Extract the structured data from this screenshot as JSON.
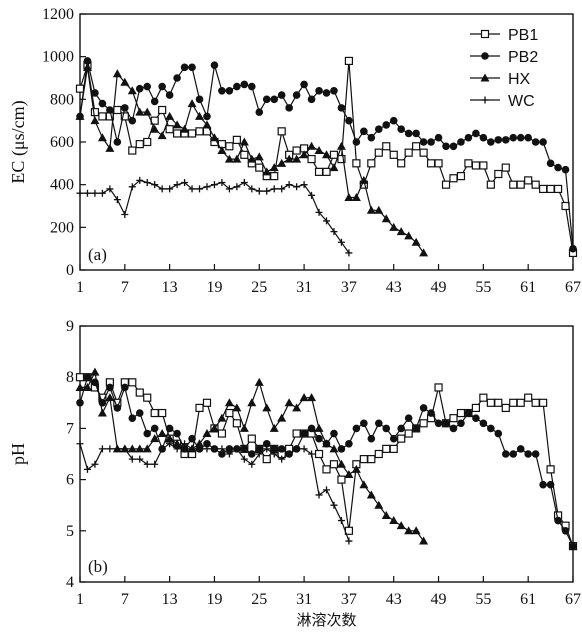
{
  "chart_data": [
    {
      "type": "line",
      "panel_label": "(a)",
      "ylabel": "EC (μs/cm)",
      "xlabel": "",
      "ylim": [
        0,
        1200
      ],
      "yticks": [
        0,
        200,
        400,
        600,
        800,
        1000,
        1200
      ],
      "xlim": [
        1,
        67
      ],
      "xticks": [
        1,
        7,
        13,
        19,
        25,
        31,
        37,
        43,
        49,
        55,
        61,
        67
      ],
      "legend": "top-right",
      "series": [
        {
          "name": "PB1",
          "marker": "square-open",
          "x": [
            1,
            2,
            3,
            4,
            5,
            6,
            7,
            8,
            9,
            10,
            11,
            12,
            13,
            14,
            15,
            16,
            17,
            18,
            19,
            20,
            21,
            22,
            23,
            24,
            25,
            26,
            27,
            28,
            29,
            30,
            31,
            32,
            33,
            34,
            35,
            36,
            37,
            38,
            39,
            40,
            41,
            42,
            43,
            44,
            45,
            46,
            47,
            48,
            49,
            50,
            51,
            52,
            53,
            54,
            55,
            56,
            57,
            58,
            59,
            60,
            61,
            62,
            63,
            64,
            65,
            66,
            67
          ],
          "y": [
            850,
            960,
            740,
            720,
            720,
            750,
            720,
            560,
            590,
            600,
            700,
            750,
            660,
            640,
            640,
            640,
            650,
            650,
            600,
            590,
            580,
            610,
            540,
            500,
            480,
            440,
            440,
            650,
            540,
            560,
            570,
            520,
            460,
            460,
            540,
            520,
            980,
            500,
            400,
            500,
            550,
            580,
            540,
            500,
            550,
            580,
            550,
            500,
            500,
            400,
            430,
            440,
            500,
            490,
            490,
            400,
            450,
            480,
            400,
            400,
            420,
            400,
            380,
            380,
            380,
            300,
            80
          ]
        },
        {
          "name": "PB2",
          "marker": "circle-filled",
          "x": [
            1,
            2,
            3,
            4,
            5,
            6,
            7,
            8,
            9,
            10,
            11,
            12,
            13,
            14,
            15,
            16,
            17,
            18,
            19,
            20,
            21,
            22,
            23,
            24,
            25,
            26,
            27,
            28,
            29,
            30,
            31,
            32,
            33,
            34,
            35,
            36,
            37,
            38,
            39,
            40,
            41,
            42,
            43,
            44,
            45,
            46,
            47,
            48,
            49,
            50,
            51,
            52,
            53,
            54,
            55,
            56,
            57,
            58,
            59,
            60,
            61,
            62,
            63,
            64,
            65,
            66,
            67
          ],
          "y": [
            720,
            980,
            830,
            780,
            750,
            600,
            760,
            700,
            850,
            860,
            790,
            860,
            820,
            900,
            950,
            950,
            800,
            720,
            960,
            840,
            840,
            860,
            870,
            860,
            740,
            800,
            800,
            820,
            760,
            820,
            870,
            800,
            840,
            830,
            840,
            760,
            700,
            600,
            650,
            620,
            660,
            680,
            700,
            660,
            640,
            640,
            600,
            600,
            620,
            580,
            580,
            600,
            620,
            640,
            620,
            600,
            610,
            610,
            620,
            620,
            620,
            600,
            600,
            500,
            480,
            470,
            100
          ]
        },
        {
          "name": "HX",
          "marker": "triangle-filled",
          "x": [
            1,
            2,
            3,
            4,
            5,
            6,
            7,
            8,
            9,
            10,
            11,
            12,
            13,
            14,
            15,
            16,
            17,
            18,
            19,
            20,
            21,
            22,
            23,
            24,
            25,
            26,
            27,
            28,
            29,
            30,
            31,
            32,
            33,
            34,
            35,
            36,
            37,
            38,
            39,
            40,
            41,
            42,
            43,
            44,
            45,
            46,
            47
          ],
          "y": [
            720,
            950,
            700,
            620,
            570,
            920,
            880,
            840,
            740,
            740,
            660,
            630,
            720,
            680,
            660,
            780,
            720,
            680,
            620,
            560,
            520,
            520,
            600,
            520,
            530,
            460,
            480,
            500,
            520,
            520,
            540,
            580,
            560,
            540,
            480,
            580,
            340,
            340,
            420,
            280,
            280,
            240,
            200,
            180,
            160,
            130,
            80
          ]
        },
        {
          "name": "WC",
          "marker": "plus",
          "x": [
            1,
            2,
            3,
            4,
            5,
            6,
            7,
            8,
            9,
            10,
            11,
            12,
            13,
            14,
            15,
            16,
            17,
            18,
            19,
            20,
            21,
            22,
            23,
            24,
            25,
            26,
            27,
            28,
            29,
            30,
            31,
            32,
            33,
            34,
            35,
            36,
            37
          ],
          "y": [
            360,
            360,
            360,
            360,
            380,
            330,
            260,
            390,
            420,
            410,
            400,
            380,
            380,
            400,
            410,
            380,
            380,
            390,
            400,
            410,
            380,
            390,
            410,
            380,
            370,
            370,
            380,
            380,
            400,
            390,
            400,
            350,
            270,
            230,
            180,
            130,
            80
          ]
        }
      ]
    },
    {
      "type": "line",
      "panel_label": "(b)",
      "ylabel": "pH",
      "xlabel": "淋溶次数",
      "ylim": [
        4,
        9
      ],
      "yticks": [
        4,
        5,
        6,
        7,
        8,
        9
      ],
      "xlim": [
        1,
        67
      ],
      "xticks": [
        1,
        7,
        13,
        19,
        25,
        31,
        37,
        43,
        49,
        55,
        61,
        67
      ],
      "series": [
        {
          "name": "PB1",
          "marker": "square-open",
          "x": [
            1,
            2,
            3,
            4,
            5,
            6,
            7,
            8,
            9,
            10,
            11,
            12,
            13,
            14,
            15,
            16,
            17,
            18,
            19,
            20,
            21,
            22,
            23,
            24,
            25,
            26,
            27,
            28,
            29,
            30,
            31,
            32,
            33,
            34,
            35,
            36,
            37,
            38,
            39,
            40,
            41,
            42,
            43,
            44,
            45,
            46,
            47,
            48,
            49,
            50,
            51,
            52,
            53,
            54,
            55,
            56,
            57,
            58,
            59,
            60,
            61,
            62,
            63,
            64,
            65,
            66,
            67
          ],
          "y": [
            8.0,
            8.0,
            7.8,
            7.6,
            7.9,
            7.5,
            7.9,
            7.9,
            7.7,
            7.6,
            7.3,
            7.3,
            6.8,
            6.7,
            6.5,
            6.5,
            7.4,
            7.5,
            7.0,
            6.9,
            7.3,
            7.1,
            6.6,
            6.8,
            6.6,
            6.4,
            6.6,
            6.5,
            6.6,
            6.9,
            6.9,
            6.9,
            6.5,
            6.2,
            6.3,
            6.0,
            5.0,
            6.3,
            6.4,
            6.4,
            6.5,
            6.6,
            6.6,
            6.8,
            6.9,
            7.0,
            7.1,
            7.2,
            7.8,
            7.1,
            7.2,
            7.3,
            7.3,
            7.4,
            7.6,
            7.5,
            7.5,
            7.4,
            7.5,
            7.5,
            7.6,
            7.5,
            7.5,
            6.2,
            5.3,
            5.1,
            4.7
          ]
        },
        {
          "name": "PB2",
          "marker": "circle-filled",
          "x": [
            1,
            2,
            3,
            4,
            5,
            6,
            7,
            8,
            9,
            10,
            11,
            12,
            13,
            14,
            15,
            16,
            17,
            18,
            19,
            20,
            21,
            22,
            23,
            24,
            25,
            26,
            27,
            28,
            29,
            30,
            31,
            32,
            33,
            34,
            35,
            36,
            37,
            38,
            39,
            40,
            41,
            42,
            43,
            44,
            45,
            46,
            47,
            48,
            49,
            50,
            51,
            52,
            53,
            54,
            55,
            56,
            57,
            58,
            59,
            60,
            61,
            62,
            63,
            64,
            65,
            66,
            67
          ],
          "y": [
            7.5,
            8.0,
            7.9,
            7.5,
            7.8,
            7.4,
            7.8,
            7.2,
            7.3,
            6.9,
            7.0,
            6.6,
            7.0,
            6.9,
            6.6,
            6.8,
            6.6,
            6.7,
            6.6,
            6.5,
            6.6,
            6.6,
            6.6,
            6.5,
            6.6,
            6.7,
            6.6,
            6.6,
            6.5,
            6.6,
            6.9,
            7.0,
            6.8,
            6.7,
            6.9,
            6.6,
            6.7,
            7.0,
            7.1,
            6.8,
            7.1,
            7.0,
            6.8,
            7.0,
            7.2,
            7.0,
            7.4,
            7.3,
            7.1,
            7.1,
            7.0,
            7.1,
            7.3,
            7.2,
            7.1,
            7.0,
            6.9,
            6.5,
            6.5,
            6.6,
            6.5,
            6.5,
            5.9,
            5.9,
            5.2,
            5.0,
            4.7
          ]
        },
        {
          "name": "HX",
          "marker": "triangle-filled",
          "x": [
            1,
            2,
            3,
            4,
            5,
            6,
            7,
            8,
            9,
            10,
            11,
            12,
            13,
            14,
            15,
            16,
            17,
            18,
            19,
            20,
            21,
            22,
            23,
            24,
            25,
            26,
            27,
            28,
            29,
            30,
            31,
            32,
            33,
            34,
            35,
            36,
            37,
            38,
            39,
            40,
            41,
            42,
            43,
            44,
            45,
            46,
            47
          ],
          "y": [
            7.8,
            7.8,
            8.1,
            7.3,
            7.6,
            6.6,
            6.6,
            6.6,
            6.6,
            6.6,
            6.8,
            6.9,
            6.8,
            6.7,
            6.6,
            6.6,
            6.7,
            6.9,
            7.0,
            7.2,
            7.5,
            7.4,
            7.0,
            7.5,
            7.9,
            7.4,
            7.0,
            7.2,
            7.5,
            7.4,
            7.6,
            7.6,
            7.0,
            6.7,
            6.6,
            6.3,
            6.1,
            6.2,
            5.9,
            5.7,
            5.5,
            5.3,
            5.2,
            5.1,
            5.0,
            5.0,
            4.8
          ]
        },
        {
          "name": "WC",
          "marker": "plus",
          "x": [
            1,
            2,
            3,
            4,
            5,
            6,
            7,
            8,
            9,
            10,
            11,
            12,
            13,
            14,
            15,
            16,
            17,
            18,
            19,
            20,
            21,
            22,
            23,
            24,
            25,
            26,
            27,
            28,
            29,
            30,
            31,
            32,
            33,
            34,
            35,
            36,
            37
          ],
          "y": [
            6.7,
            6.2,
            6.3,
            6.6,
            6.6,
            6.6,
            6.6,
            6.4,
            6.4,
            6.3,
            6.3,
            6.6,
            6.7,
            6.6,
            6.7,
            6.6,
            6.6,
            6.6,
            6.6,
            6.6,
            6.5,
            6.6,
            6.4,
            6.3,
            6.5,
            6.6,
            6.5,
            6.4,
            6.5,
            6.6,
            6.6,
            6.5,
            5.7,
            5.8,
            5.5,
            5.2,
            4.8
          ]
        }
      ]
    }
  ]
}
